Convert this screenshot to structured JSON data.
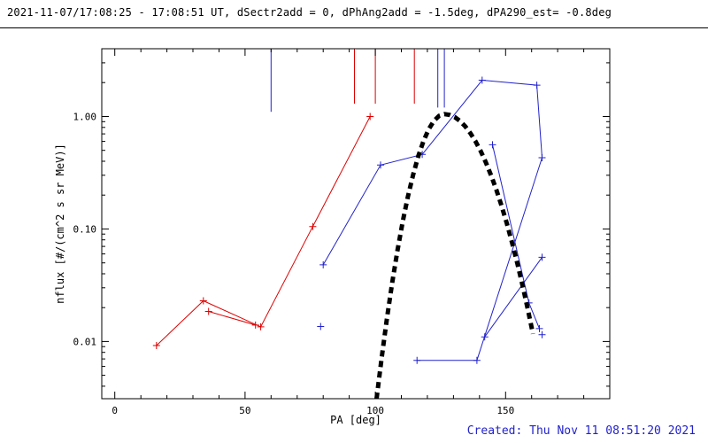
{
  "header": {
    "title": "2021-11-07/17:08:25 - 17:08:51 UT, dSectr2add = 0, dPhAng2add = -1.5deg, dPA290_est= -0.8deg"
  },
  "footer": {
    "created": "Created: Thu Nov 11 08:51:20 2021"
  },
  "colors": {
    "red": "#dd0000",
    "blue": "#2222cc",
    "black": "#000000",
    "created_text": "#2222cc"
  },
  "chart_data": {
    "type": "line",
    "title": "2021-11-07/17:08:25 - 17:08:51 UT, dSectr2add = 0, dPhAng2add = -1.5deg, dPA290_est= -0.8deg",
    "xlabel": "PA [deg]",
    "ylabel": "nflux [#/(cm^2 s sr MeV)]",
    "xlim": [
      -5,
      190
    ],
    "ylim": [
      0.0031,
      4.0
    ],
    "yscale": "log",
    "grid": false,
    "x_major_ticks": [
      0,
      50,
      100,
      150
    ],
    "x_minor_step": 10,
    "y_major_ticks": [
      0.01,
      0.1,
      1.0
    ],
    "y_tick_labels": [
      "0.01",
      "0.10",
      "1.00"
    ],
    "series": [
      {
        "name": "red-main",
        "color": "red",
        "marker": "plus",
        "points": [
          [
            16,
            0.0092
          ],
          [
            34,
            0.023
          ],
          [
            56,
            0.0135
          ],
          [
            76,
            0.105
          ],
          [
            98,
            1.0
          ]
        ]
      },
      {
        "name": "red-cross",
        "color": "red",
        "marker": "plus",
        "points": [
          [
            36,
            0.0185
          ],
          [
            54,
            0.014
          ]
        ]
      },
      {
        "name": "blue-rise",
        "color": "blue",
        "marker": "plus",
        "points": [
          [
            80,
            0.048
          ],
          [
            102,
            0.37
          ],
          [
            118,
            0.46
          ],
          [
            141,
            2.1
          ],
          [
            162,
            1.9
          ],
          [
            164,
            0.43
          ]
        ]
      },
      {
        "name": "blue-right-descent",
        "color": "blue",
        "marker": "plus",
        "points": [
          [
            145,
            0.56
          ],
          [
            159,
            0.022
          ],
          [
            163,
            0.013
          ]
        ]
      },
      {
        "name": "blue-mid-descent",
        "color": "blue",
        "marker": "plus",
        "points": [
          [
            164,
            0.056
          ],
          [
            142,
            0.011
          ]
        ]
      },
      {
        "name": "blue-bottom",
        "color": "blue",
        "marker": "plus",
        "points": [
          [
            116,
            0.0068
          ],
          [
            139,
            0.0068
          ],
          [
            164,
            0.43
          ]
        ]
      },
      {
        "name": "blue-isolated-low-left",
        "color": "blue",
        "marker": "plus",
        "points": [
          [
            79,
            0.0136
          ]
        ]
      },
      {
        "name": "blue-isolated-low-right",
        "color": "blue",
        "marker": "plus",
        "points": [
          [
            164,
            0.0115
          ]
        ]
      }
    ],
    "spikes": [
      {
        "color": "blue",
        "pa": 60,
        "flux_end": 1.1
      },
      {
        "color": "red",
        "pa": 92,
        "flux_end": 1.3
      },
      {
        "color": "red",
        "pa": 100,
        "flux_end": 1.3
      },
      {
        "color": "red",
        "pa": 115,
        "flux_end": 1.3
      },
      {
        "color": "blue",
        "pa": 124,
        "flux_end": 1.2
      },
      {
        "color": "blue",
        "pa": 126.5,
        "flux_end": 1.2
      }
    ],
    "fit_curve": {
      "name": "black-dashed-fit",
      "color": "black",
      "style": "thick-dashed",
      "peak_pa": 126.5,
      "peak_flux": 1.05,
      "points": [
        [
          100.5,
          0.0031
        ],
        [
          102.5,
          0.0073
        ],
        [
          104.5,
          0.0162
        ],
        [
          106.5,
          0.0334
        ],
        [
          108.5,
          0.0643
        ],
        [
          110.5,
          0.1156
        ],
        [
          112.5,
          0.194
        ],
        [
          114.5,
          0.303
        ],
        [
          116.5,
          0.443
        ],
        [
          118.5,
          0.604
        ],
        [
          120.5,
          0.77
        ],
        [
          122.5,
          0.914
        ],
        [
          124.5,
          1.014
        ],
        [
          126.5,
          1.05
        ],
        [
          128.5,
          1.033
        ],
        [
          130.5,
          0.986
        ],
        [
          132.5,
          0.912
        ],
        [
          134.5,
          0.818
        ],
        [
          136.5,
          0.711
        ],
        [
          138.5,
          0.599
        ],
        [
          140.5,
          0.49
        ],
        [
          142.5,
          0.387
        ],
        [
          144.5,
          0.297
        ],
        [
          146.5,
          0.221
        ],
        [
          148.5,
          0.16
        ],
        [
          150.5,
          0.112
        ],
        [
          152.5,
          0.0756
        ],
        [
          154.5,
          0.0497
        ],
        [
          156.5,
          0.0316
        ],
        [
          158.5,
          0.0195
        ],
        [
          160.5,
          0.0117
        ]
      ]
    }
  }
}
